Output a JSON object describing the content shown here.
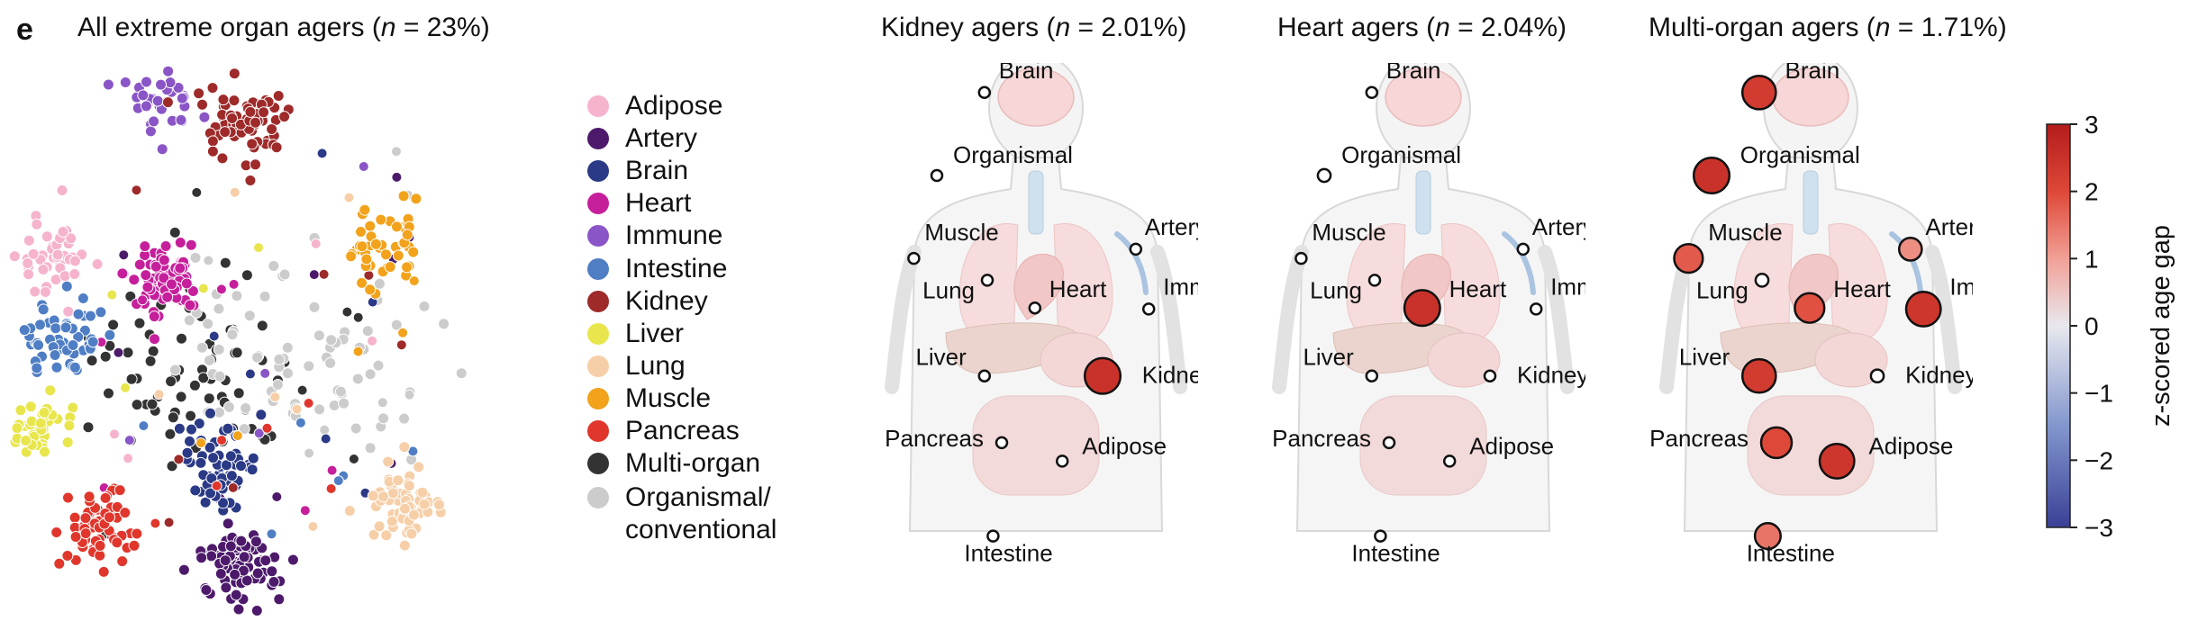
{
  "panel_letter": "e",
  "titles": {
    "left": {
      "prefix": "All extreme organ agers (",
      "n": "n",
      "suffix": " = 23%)"
    },
    "kidney": {
      "prefix": "Kidney agers (",
      "n": "n",
      "suffix": " = 2.01%)"
    },
    "heart": {
      "prefix": "Heart agers (",
      "n": "n",
      "suffix": " = 2.04%)"
    },
    "multi": {
      "prefix": "Multi-organ agers (",
      "n": "n",
      "suffix": " = 1.71%)"
    }
  },
  "legend": [
    {
      "label": "Adipose",
      "color": "#f6b3cd"
    },
    {
      "label": "Artery",
      "color": "#4d1a6b"
    },
    {
      "label": "Brain",
      "color": "#2b3a86"
    },
    {
      "label": "Heart",
      "color": "#c61f9c"
    },
    {
      "label": "Immune",
      "color": "#8a55c6"
    },
    {
      "label": "Intestine",
      "color": "#4f7ec4"
    },
    {
      "label": "Kidney",
      "color": "#9e2a2a"
    },
    {
      "label": "Liver",
      "color": "#e8e64c"
    },
    {
      "label": "Lung",
      "color": "#f6cfa8"
    },
    {
      "label": "Muscle",
      "color": "#f2a21b"
    },
    {
      "label": "Pancreas",
      "color": "#e0362c"
    },
    {
      "label": "Multi-organ",
      "color": "#333333"
    },
    {
      "label": "Organismal/",
      "label2": "conventional",
      "color": "#cccccc"
    }
  ],
  "colorbar": {
    "label": "z-scored age gap",
    "ticks": [
      "3",
      "2",
      "1",
      "0",
      "−1",
      "−2",
      "−3"
    ],
    "min": -3,
    "max": 3
  },
  "chart_data": [
    {
      "type": "scatter",
      "title": "All extreme organ agers (n = 23%)",
      "description_clusters": [
        {
          "group": "Adipose",
          "cx": 0.08,
          "cy": 0.35,
          "n": 45
        },
        {
          "group": "Artery",
          "cx": 0.42,
          "cy": 0.9,
          "n": 80
        },
        {
          "group": "Brain",
          "cx": 0.38,
          "cy": 0.72,
          "n": 60
        },
        {
          "group": "Heart",
          "cx": 0.28,
          "cy": 0.38,
          "n": 70
        },
        {
          "group": "Immune",
          "cx": 0.27,
          "cy": 0.07,
          "n": 35
        },
        {
          "group": "Intestine",
          "cx": 0.1,
          "cy": 0.5,
          "n": 55
        },
        {
          "group": "Kidney",
          "cx": 0.43,
          "cy": 0.1,
          "n": 70
        },
        {
          "group": "Liver",
          "cx": 0.05,
          "cy": 0.65,
          "n": 45
        },
        {
          "group": "Lung",
          "cx": 0.72,
          "cy": 0.79,
          "n": 60
        },
        {
          "group": "Muscle",
          "cx": 0.69,
          "cy": 0.33,
          "n": 45
        },
        {
          "group": "Pancreas",
          "cx": 0.15,
          "cy": 0.83,
          "n": 55
        },
        {
          "group": "Multi-organ",
          "cx": 0.33,
          "cy": 0.54,
          "n": 70
        },
        {
          "group": "Organismal/conventional",
          "cx": 0.53,
          "cy": 0.52,
          "n": 75
        }
      ]
    },
    {
      "type": "bubble",
      "title": "Kidney agers (n = 2.01%)",
      "organs": [
        {
          "label": "Brain",
          "z": 0
        },
        {
          "label": "Organismal",
          "z": 0
        },
        {
          "label": "Muscle",
          "z": 0
        },
        {
          "label": "Artery",
          "z": 0
        },
        {
          "label": "Lung",
          "z": 0
        },
        {
          "label": "Heart",
          "z": 0
        },
        {
          "label": "Immune",
          "z": 0
        },
        {
          "label": "Liver",
          "z": 0
        },
        {
          "label": "Kidney",
          "z": 2.5
        },
        {
          "label": "Pancreas",
          "z": 0
        },
        {
          "label": "Adipose",
          "z": 0
        },
        {
          "label": "Intestine",
          "z": 0
        }
      ]
    },
    {
      "type": "bubble",
      "title": "Heart agers (n = 2.04%)",
      "organs": [
        {
          "label": "Brain",
          "z": 0
        },
        {
          "label": "Organismal",
          "z": 0.2
        },
        {
          "label": "Muscle",
          "z": 0
        },
        {
          "label": "Artery",
          "z": 0
        },
        {
          "label": "Lung",
          "z": 0
        },
        {
          "label": "Heart",
          "z": 2.5
        },
        {
          "label": "Immune",
          "z": 0
        },
        {
          "label": "Liver",
          "z": 0
        },
        {
          "label": "Kidney",
          "z": 0
        },
        {
          "label": "Pancreas",
          "z": 0
        },
        {
          "label": "Adipose",
          "z": 0
        },
        {
          "label": "Intestine",
          "z": 0
        }
      ]
    },
    {
      "type": "bubble",
      "title": "Multi-organ agers (n = 1.71%)",
      "organs": [
        {
          "label": "Brain",
          "z": 2.3
        },
        {
          "label": "Organismal",
          "z": 2.5
        },
        {
          "label": "Muscle",
          "z": 1.8
        },
        {
          "label": "Artery",
          "z": 1.2
        },
        {
          "label": "Lung",
          "z": 0.2
        },
        {
          "label": "Heart",
          "z": 1.9
        },
        {
          "label": "Immune",
          "z": 2.4
        },
        {
          "label": "Liver",
          "z": 2.3
        },
        {
          "label": "Kidney",
          "z": 0.2
        },
        {
          "label": "Pancreas",
          "z": 2.0
        },
        {
          "label": "Adipose",
          "z": 2.4
        },
        {
          "label": "Intestine",
          "z": 1.5
        }
      ]
    }
  ]
}
